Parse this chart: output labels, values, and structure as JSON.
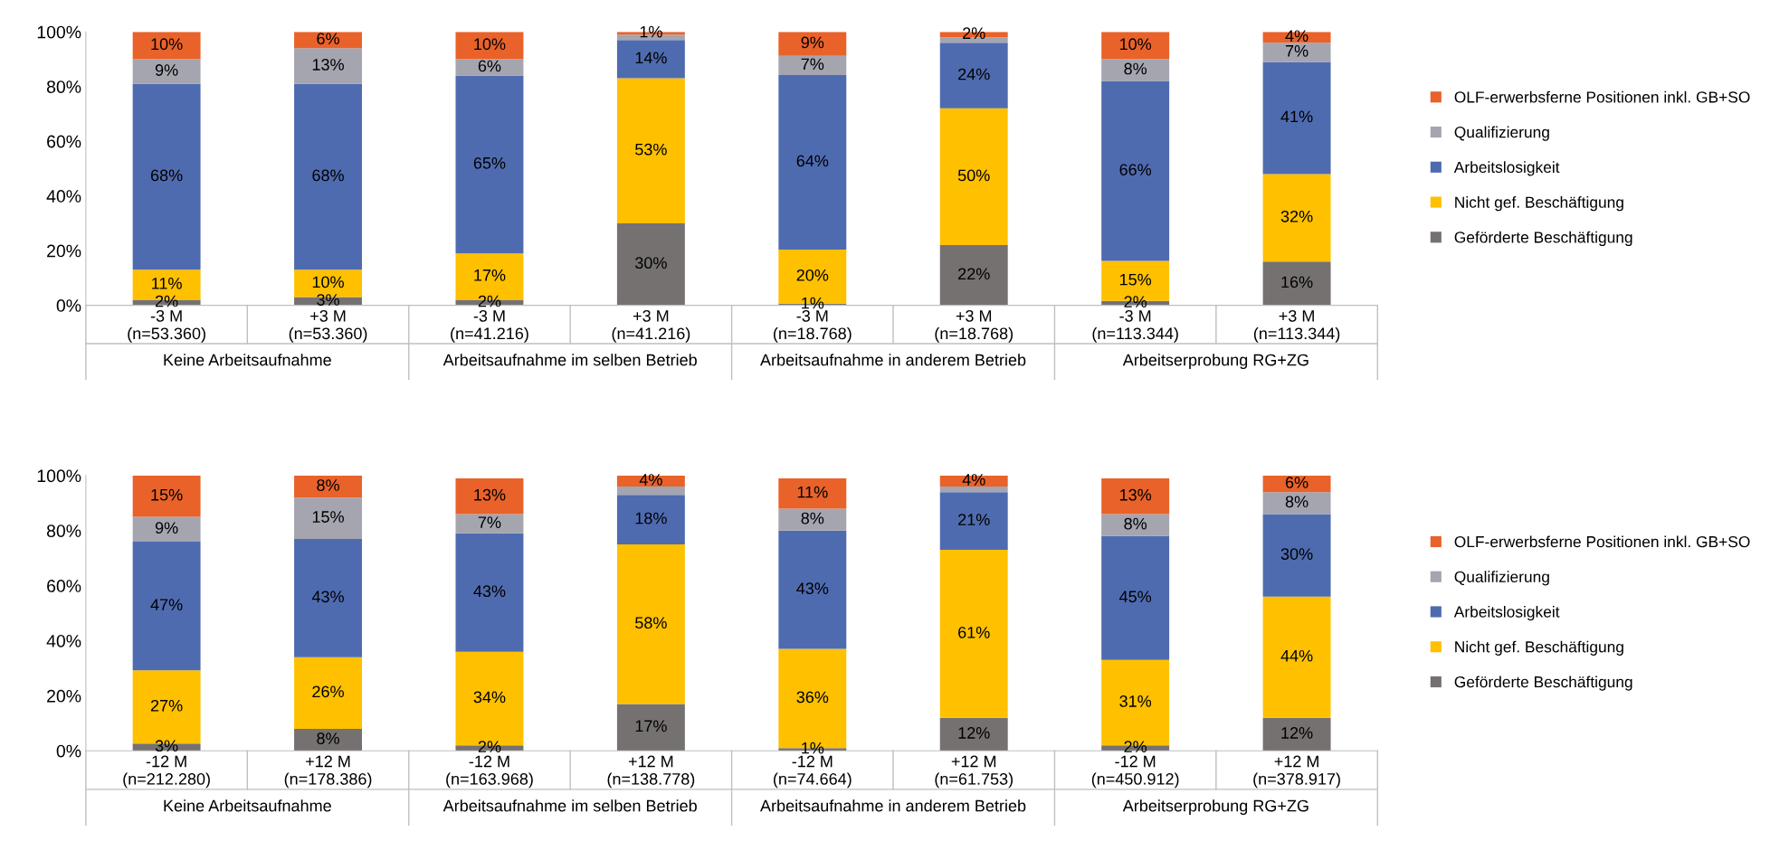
{
  "chart_data": [
    {
      "type": "bar",
      "stacked": true,
      "legend": "right",
      "grid": false,
      "ylim": [
        0,
        100
      ],
      "yticks": [
        {
          "value": 0,
          "label": "0%"
        },
        {
          "value": 20,
          "label": "20%"
        },
        {
          "value": 40,
          "label": "40%"
        },
        {
          "value": 60,
          "label": "60%"
        },
        {
          "value": 80,
          "label": "80%"
        },
        {
          "value": 100,
          "label": "100%"
        }
      ],
      "categories": [
        "-3 M\n(n=53.360)",
        "+3 M\n(n=53.360)",
        "-3 M\n(n=41.216)",
        "+3 M\n(n=41.216)",
        "-3 M\n(n=18.768)",
        "+3 M\n(n=18.768)",
        "-3 M\n(n=113.344)",
        "+3 M\n(n=113.344)"
      ],
      "annotations": [
        "Keine Arbeitsaufnahme",
        "Arbeitsaufnahme im selben Betrieb",
        "Arbeitsaufnahme in anderem Betrieb",
        "Arbeitserprobung RG+ZG"
      ],
      "series": [
        {
          "name": "Geförderte Beschäftigung",
          "color": "#767171",
          "values": [
            2,
            3,
            2,
            30,
            0.6,
            22,
            1.6,
            16
          ],
          "value_labels": [
            "2%",
            "3%",
            "2%",
            "30%",
            "1%",
            "22%",
            "2%",
            "16%"
          ]
        },
        {
          "name": "Nicht gef. Beschäftigung",
          "color": "#ffc000",
          "values": [
            11,
            10,
            17,
            53,
            19.8,
            50,
            14.6,
            32
          ],
          "value_labels": [
            "11%",
            "10%",
            "17%",
            "53%",
            "20%",
            "50%",
            "15%",
            "32%"
          ]
        },
        {
          "name": "Arbeitslosigkeit",
          "color": "#4f6bb0",
          "values": [
            68,
            68,
            65,
            14,
            63.8,
            24,
            65.8,
            41
          ],
          "value_labels": [
            "68%",
            "68%",
            "65%",
            "14%",
            "64%",
            "24%",
            "66%",
            "41%"
          ]
        },
        {
          "name": "Qualifizierung",
          "color": "#a5a5b0",
          "values": [
            9,
            13,
            6,
            2,
            7,
            2,
            8,
            7
          ],
          "value_labels": [
            "9%",
            "13%",
            "6%",
            null,
            "7%",
            null,
            "8%",
            "7%"
          ]
        },
        {
          "name": "OLF-erwerbsferne Positionen inkl. GB+SO",
          "color": "#e9622a",
          "values": [
            10,
            6,
            10,
            1,
            8.8,
            2,
            10,
            4
          ],
          "value_labels": [
            "10%",
            "6%",
            "10%",
            "1%",
            "9%",
            "2%",
            "10%",
            "4%"
          ]
        }
      ]
    },
    {
      "type": "bar",
      "stacked": true,
      "legend": "right",
      "grid": false,
      "ylim": [
        0,
        100
      ],
      "yticks": [
        {
          "value": 0,
          "label": "0%"
        },
        {
          "value": 20,
          "label": "20%"
        },
        {
          "value": 40,
          "label": "40%"
        },
        {
          "value": 60,
          "label": "60%"
        },
        {
          "value": 80,
          "label": "80%"
        },
        {
          "value": 100,
          "label": "100%"
        }
      ],
      "categories": [
        "-12 M\n(n=212.280)",
        "+12 M\n(n=178.386)",
        "-12 M\n(n=163.968)",
        "+12 M\n(n=138.778)",
        "-12 M\n(n=74.664)",
        "+12 M\n(n=61.753)",
        "-12 M\n(n=450.912)",
        "+12 M\n(n=378.917)"
      ],
      "annotations": [
        "Keine Arbeitsaufnahme",
        "Arbeitsaufnahme im selben Betrieb",
        "Arbeitsaufnahme in anderem Betrieb",
        "Arbeitserprobung RG+ZG"
      ],
      "series": [
        {
          "name": "Geförderte Beschäftigung",
          "color": "#767171",
          "values": [
            2.6,
            8,
            2,
            17,
            1,
            12,
            2,
            12
          ],
          "value_labels": [
            "3%",
            "8%",
            "2%",
            "17%",
            "1%",
            "12%",
            "2%",
            "12%"
          ]
        },
        {
          "name": "Nicht gef. Beschäftigung",
          "color": "#ffc000",
          "values": [
            26.6,
            26,
            34,
            58,
            36,
            61,
            31,
            44
          ],
          "value_labels": [
            "27%",
            "26%",
            "34%",
            "58%",
            "36%",
            "61%",
            "31%",
            "44%"
          ]
        },
        {
          "name": "Arbeitslosigkeit",
          "color": "#4f6bb0",
          "values": [
            46.8,
            43,
            43,
            18,
            43,
            21,
            45,
            30
          ],
          "value_labels": [
            "47%",
            "43%",
            "43%",
            "18%",
            "43%",
            "21%",
            "45%",
            "30%"
          ]
        },
        {
          "name": "Qualifizierung",
          "color": "#a5a5b0",
          "values": [
            9,
            15,
            7,
            3,
            8,
            2,
            8,
            8
          ],
          "value_labels": [
            "9%",
            "15%",
            "7%",
            null,
            "8%",
            null,
            "8%",
            "8%"
          ]
        },
        {
          "name": "OLF-erwerbsferne Positionen inkl. GB+SO",
          "color": "#e9622a",
          "values": [
            15,
            8,
            13,
            4,
            11,
            4,
            13,
            6
          ],
          "value_labels": [
            "15%",
            "8%",
            "13%",
            "4%",
            "11%",
            "4%",
            "13%",
            "6%"
          ]
        }
      ]
    }
  ]
}
